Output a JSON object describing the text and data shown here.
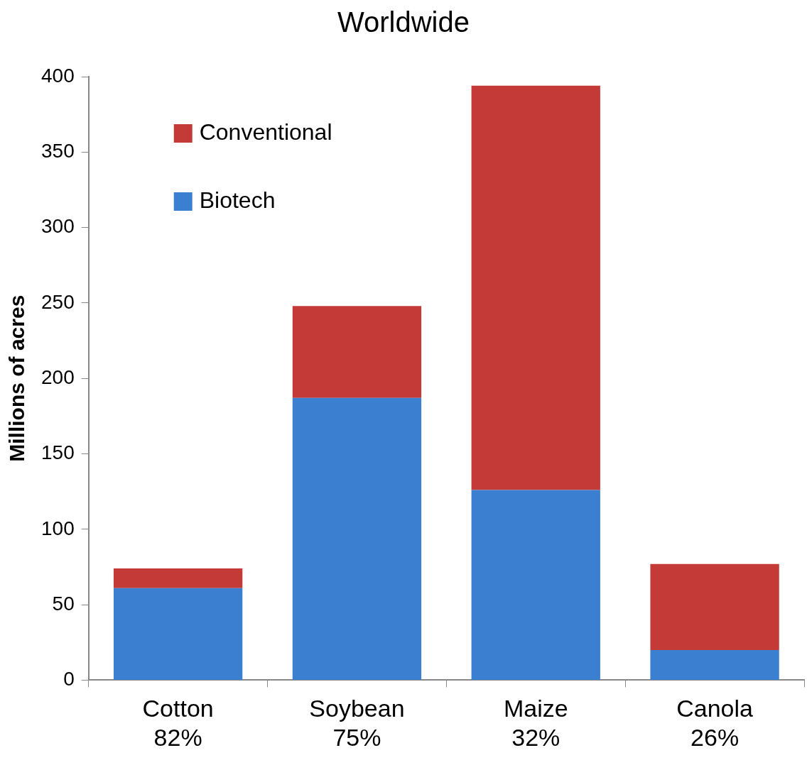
{
  "chart_data": {
    "type": "bar",
    "title": "Worldwide",
    "ylabel": "Millions of acres",
    "categories": [
      "Cotton\n82%",
      "Soybean\n75%",
      "Maize\n32%",
      "Canola\n26%"
    ],
    "stacked": true,
    "legend": "top left",
    "grid": false,
    "ylim": [
      0,
      400
    ],
    "yticks": [
      0,
      50,
      100,
      150,
      200,
      250,
      300,
      350,
      400
    ],
    "series": [
      {
        "name": "Biotech",
        "color": "#3b7fd0",
        "values": [
          61,
          187,
          126,
          20
        ]
      },
      {
        "name": "Conventional",
        "color": "#c43a36",
        "values": [
          13,
          61,
          268,
          57
        ]
      }
    ]
  }
}
